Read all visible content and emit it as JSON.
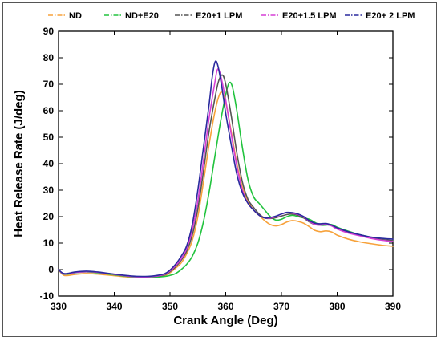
{
  "chart_data": {
    "type": "line",
    "title": "",
    "xlabel": "Crank Angle (Deg)",
    "ylabel": "Heat Release Rate (J/deg)",
    "xlim": [
      330,
      390
    ],
    "ylim": [
      -10,
      90
    ],
    "xticks": [
      330,
      340,
      350,
      360,
      370,
      380,
      390
    ],
    "yticks": [
      -10,
      0,
      10,
      20,
      30,
      40,
      50,
      60,
      70,
      80,
      90
    ],
    "legend_position": "top",
    "grid": false,
    "series": [
      {
        "name": "ND",
        "color": "#F7A23B",
        "dash": "dash-dot",
        "points": [
          [
            330,
            0
          ],
          [
            331,
            -2.2
          ],
          [
            333,
            -1.8
          ],
          [
            335,
            -1.5
          ],
          [
            337,
            -1.7
          ],
          [
            340,
            -2.3
          ],
          [
            343,
            -2.9
          ],
          [
            345,
            -3.1
          ],
          [
            347,
            -3.0
          ],
          [
            349,
            -2.3
          ],
          [
            350,
            -1.2
          ],
          [
            351,
            0.5
          ],
          [
            352,
            2.5
          ],
          [
            353,
            6
          ],
          [
            354,
            11
          ],
          [
            355,
            20
          ],
          [
            356,
            33
          ],
          [
            357,
            47
          ],
          [
            358,
            59
          ],
          [
            358.7,
            65
          ],
          [
            359.3,
            67
          ],
          [
            360,
            63
          ],
          [
            361,
            52
          ],
          [
            362,
            40
          ],
          [
            363,
            31
          ],
          [
            364,
            26
          ],
          [
            365,
            22.5
          ],
          [
            366,
            20.5
          ],
          [
            367,
            18.5
          ],
          [
            368,
            17
          ],
          [
            369,
            16.5
          ],
          [
            370,
            17
          ],
          [
            371,
            18
          ],
          [
            372,
            18.5
          ],
          [
            373,
            18.2
          ],
          [
            374,
            17.5
          ],
          [
            375,
            16.2
          ],
          [
            376,
            14.8
          ],
          [
            377,
            14.3
          ],
          [
            378,
            14.6
          ],
          [
            379,
            14.2
          ],
          [
            380,
            13
          ],
          [
            382,
            11.5
          ],
          [
            384,
            10.5
          ],
          [
            386,
            9.8
          ],
          [
            388,
            9.2
          ],
          [
            390,
            8.8
          ]
        ]
      },
      {
        "name": "ND+E20",
        "color": "#22C33E",
        "dash": "dash-dot",
        "points": [
          [
            330,
            0
          ],
          [
            331,
            -1.8
          ],
          [
            333,
            -1.2
          ],
          [
            335,
            -0.9
          ],
          [
            337,
            -1.2
          ],
          [
            340,
            -2.0
          ],
          [
            343,
            -2.7
          ],
          [
            345,
            -2.9
          ],
          [
            347,
            -2.9
          ],
          [
            349,
            -2.6
          ],
          [
            350,
            -2.2
          ],
          [
            351,
            -1.5
          ],
          [
            352,
            0
          ],
          [
            353,
            2
          ],
          [
            354,
            5
          ],
          [
            355,
            10
          ],
          [
            356,
            18
          ],
          [
            357,
            29
          ],
          [
            358,
            42
          ],
          [
            359,
            55
          ],
          [
            360,
            66
          ],
          [
            360.6,
            70.5
          ],
          [
            361.2,
            69
          ],
          [
            362,
            60
          ],
          [
            363,
            46
          ],
          [
            364,
            34
          ],
          [
            365,
            27.5
          ],
          [
            366,
            25
          ],
          [
            367,
            22.5
          ],
          [
            368,
            20
          ],
          [
            369,
            18.7
          ],
          [
            370,
            19
          ],
          [
            371,
            20
          ],
          [
            372,
            20.5
          ],
          [
            373,
            20
          ],
          [
            374,
            19.5
          ],
          [
            375,
            19
          ],
          [
            376,
            17.8
          ],
          [
            377,
            16.8
          ],
          [
            378,
            16.8
          ],
          [
            379,
            17
          ],
          [
            380,
            16
          ],
          [
            382,
            14.5
          ],
          [
            384,
            13.2
          ],
          [
            386,
            12.2
          ],
          [
            388,
            11.3
          ],
          [
            390,
            10.8
          ]
        ]
      },
      {
        "name": "E20+1 LPM",
        "color": "#555555",
        "dash": "dash-dot",
        "points": [
          [
            330,
            0
          ],
          [
            331,
            -1.6
          ],
          [
            333,
            -1.0
          ],
          [
            335,
            -0.8
          ],
          [
            337,
            -1.0
          ],
          [
            340,
            -1.8
          ],
          [
            343,
            -2.5
          ],
          [
            345,
            -2.7
          ],
          [
            347,
            -2.6
          ],
          [
            349,
            -2.0
          ],
          [
            350,
            -0.8
          ],
          [
            351,
            1
          ],
          [
            352,
            3.5
          ],
          [
            353,
            7
          ],
          [
            354,
            13
          ],
          [
            355,
            23
          ],
          [
            356,
            37
          ],
          [
            357,
            52
          ],
          [
            358,
            64
          ],
          [
            358.7,
            71
          ],
          [
            359.4,
            73.5
          ],
          [
            360,
            70
          ],
          [
            361,
            58
          ],
          [
            362,
            44
          ],
          [
            363,
            33
          ],
          [
            364,
            26.5
          ],
          [
            365,
            23.5
          ],
          [
            366,
            21
          ],
          [
            367,
            19.5
          ],
          [
            368,
            19.3
          ],
          [
            369,
            19.6
          ],
          [
            370,
            20.2
          ],
          [
            371,
            20.8
          ],
          [
            372,
            21
          ],
          [
            373,
            20.5
          ],
          [
            374,
            19.5
          ],
          [
            375,
            18
          ],
          [
            376,
            17
          ],
          [
            377,
            16.8
          ],
          [
            378,
            17
          ],
          [
            379,
            16.5
          ],
          [
            380,
            15.5
          ],
          [
            382,
            14
          ],
          [
            384,
            13
          ],
          [
            386,
            12
          ],
          [
            388,
            11.3
          ],
          [
            390,
            11
          ]
        ]
      },
      {
        "name": "E20+1.5 LPM",
        "color": "#D63FD6",
        "dash": "dash-dot",
        "points": [
          [
            330,
            0
          ],
          [
            331,
            -1.7
          ],
          [
            333,
            -1.1
          ],
          [
            335,
            -0.8
          ],
          [
            337,
            -1.0
          ],
          [
            340,
            -1.8
          ],
          [
            343,
            -2.6
          ],
          [
            345,
            -2.8
          ],
          [
            347,
            -2.6
          ],
          [
            349,
            -1.8
          ],
          [
            350,
            -0.5
          ],
          [
            351,
            1.5
          ],
          [
            352,
            4
          ],
          [
            353,
            8
          ],
          [
            354,
            15
          ],
          [
            355,
            26
          ],
          [
            356,
            41
          ],
          [
            357,
            57
          ],
          [
            358,
            70
          ],
          [
            358.5,
            75.5
          ],
          [
            359,
            74
          ],
          [
            360,
            64
          ],
          [
            361,
            51
          ],
          [
            362,
            39
          ],
          [
            363,
            30
          ],
          [
            364,
            25
          ],
          [
            365,
            22.5
          ],
          [
            366,
            20.5
          ],
          [
            367,
            19.5
          ],
          [
            368,
            19.5
          ],
          [
            369,
            20
          ],
          [
            370,
            21
          ],
          [
            371,
            21.5
          ],
          [
            372,
            21.3
          ],
          [
            373,
            20.8
          ],
          [
            374,
            19.8
          ],
          [
            375,
            18.3
          ],
          [
            376,
            17
          ],
          [
            377,
            16.8
          ],
          [
            378,
            17
          ],
          [
            379,
            16.5
          ],
          [
            380,
            15.3
          ],
          [
            382,
            13.8
          ],
          [
            384,
            12.8
          ],
          [
            386,
            11.8
          ],
          [
            388,
            11.1
          ],
          [
            390,
            10.6
          ]
        ]
      },
      {
        "name": "E20+ 2 LPM",
        "color": "#2A2A9E",
        "dash": "dash-dot",
        "points": [
          [
            330,
            0
          ],
          [
            331,
            -1.5
          ],
          [
            333,
            -0.9
          ],
          [
            335,
            -0.6
          ],
          [
            337,
            -0.9
          ],
          [
            340,
            -1.7
          ],
          [
            343,
            -2.4
          ],
          [
            345,
            -2.6
          ],
          [
            347,
            -2.4
          ],
          [
            349,
            -1.6
          ],
          [
            350,
            -0.2
          ],
          [
            351,
            2
          ],
          [
            352,
            5
          ],
          [
            353,
            9
          ],
          [
            354,
            17
          ],
          [
            355,
            30
          ],
          [
            356,
            46
          ],
          [
            357,
            62
          ],
          [
            357.6,
            73
          ],
          [
            358.1,
            78.5
          ],
          [
            358.6,
            77
          ],
          [
            359.3,
            69
          ],
          [
            360,
            59
          ],
          [
            361,
            47
          ],
          [
            362,
            36
          ],
          [
            363,
            29
          ],
          [
            364,
            25
          ],
          [
            365,
            22.5
          ],
          [
            366,
            20.5
          ],
          [
            367,
            19.5
          ],
          [
            368,
            19.7
          ],
          [
            369,
            20.2
          ],
          [
            370,
            21
          ],
          [
            371,
            21.6
          ],
          [
            372,
            21.5
          ],
          [
            373,
            21
          ],
          [
            374,
            20
          ],
          [
            375,
            18.5
          ],
          [
            376,
            17.5
          ],
          [
            377,
            17.3
          ],
          [
            378,
            17.4
          ],
          [
            379,
            16.8
          ],
          [
            380,
            15.8
          ],
          [
            382,
            14.3
          ],
          [
            384,
            13.2
          ],
          [
            386,
            12.3
          ],
          [
            388,
            11.8
          ],
          [
            390,
            11.5
          ]
        ]
      }
    ]
  }
}
